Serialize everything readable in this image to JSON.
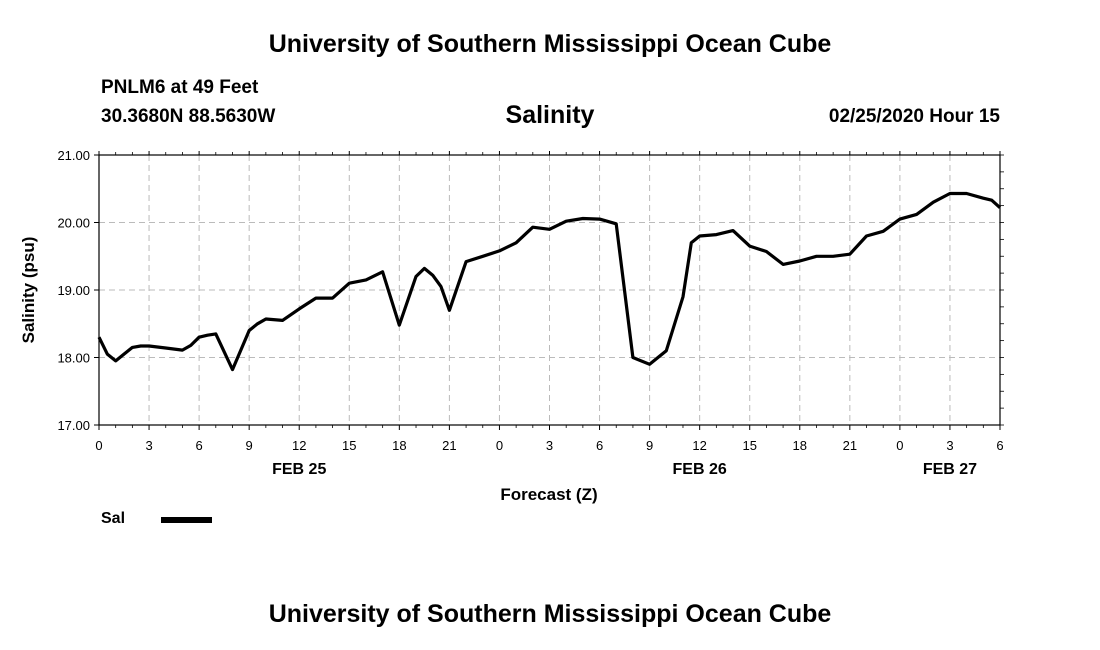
{
  "header": {
    "title": "University of Southern Mississippi Ocean Cube",
    "station": "PNLM6 at 49 Feet",
    "coordinates": "30.3680N 88.5630W",
    "chart_title": "Salinity",
    "datetime": "02/25/2020 Hour 15"
  },
  "footer": {
    "title": "University of Southern Mississippi Ocean Cube"
  },
  "legend": {
    "label": "Sal",
    "color": "#000000"
  },
  "chart_data": {
    "type": "line",
    "title": "Salinity",
    "xlabel": "Forecast (Z)",
    "ylabel": "Salinity (psu)",
    "xlim": [
      0,
      54
    ],
    "ylim": [
      17,
      21
    ],
    "grid": true,
    "y_ticks": [
      17,
      18,
      19,
      20,
      21
    ],
    "y_tick_labels": [
      "17.00",
      "18.00",
      "19.00",
      "20.00",
      "21.00"
    ],
    "x_ticks": [
      0,
      3,
      6,
      9,
      12,
      15,
      18,
      21,
      24,
      27,
      30,
      33,
      36,
      39,
      42,
      45,
      48,
      51,
      54
    ],
    "x_tick_labels": [
      "0",
      "3",
      "6",
      "9",
      "12",
      "15",
      "18",
      "21",
      "0",
      "3",
      "6",
      "9",
      "12",
      "15",
      "18",
      "21",
      "0",
      "3",
      "6"
    ],
    "date_labels": [
      {
        "x": 12,
        "label": "FEB 25"
      },
      {
        "x": 36,
        "label": "FEB 26"
      },
      {
        "x": 51,
        "label": "FEB 27"
      }
    ],
    "series": [
      {
        "name": "Sal",
        "color": "#000000",
        "x": [
          0,
          0.5,
          1,
          1.5,
          2,
          2.5,
          3,
          4,
          5,
          5.5,
          6,
          6.5,
          7,
          8,
          9,
          9.5,
          10,
          11,
          12,
          13,
          14,
          15,
          16,
          17,
          18,
          19,
          19.5,
          20,
          20.5,
          21,
          22,
          23,
          24,
          25,
          26,
          27,
          28,
          29,
          30,
          31,
          32,
          33,
          34,
          35,
          35.5,
          36,
          37,
          38,
          39,
          40,
          41,
          42,
          43,
          44,
          45,
          46,
          47,
          48,
          49,
          50,
          51,
          52,
          53,
          53.5,
          54
        ],
        "y": [
          18.3,
          18.05,
          17.95,
          18.05,
          18.15,
          18.17,
          18.17,
          18.14,
          18.11,
          18.18,
          18.3,
          18.33,
          18.35,
          17.82,
          18.4,
          18.5,
          18.57,
          18.55,
          18.72,
          18.88,
          18.88,
          19.1,
          19.15,
          19.27,
          18.48,
          19.2,
          19.32,
          19.22,
          19.05,
          18.7,
          19.42,
          19.5,
          19.58,
          19.7,
          19.93,
          19.9,
          20.02,
          20.06,
          20.05,
          19.98,
          18.0,
          17.9,
          18.1,
          18.9,
          19.7,
          19.8,
          19.82,
          19.88,
          19.65,
          19.57,
          19.38,
          19.43,
          19.5,
          19.5,
          19.53,
          19.8,
          19.87,
          20.05,
          20.12,
          20.3,
          20.43,
          20.43,
          20.36,
          20.33,
          20.22
        ],
        "y_end_overrides": []
      }
    ]
  }
}
